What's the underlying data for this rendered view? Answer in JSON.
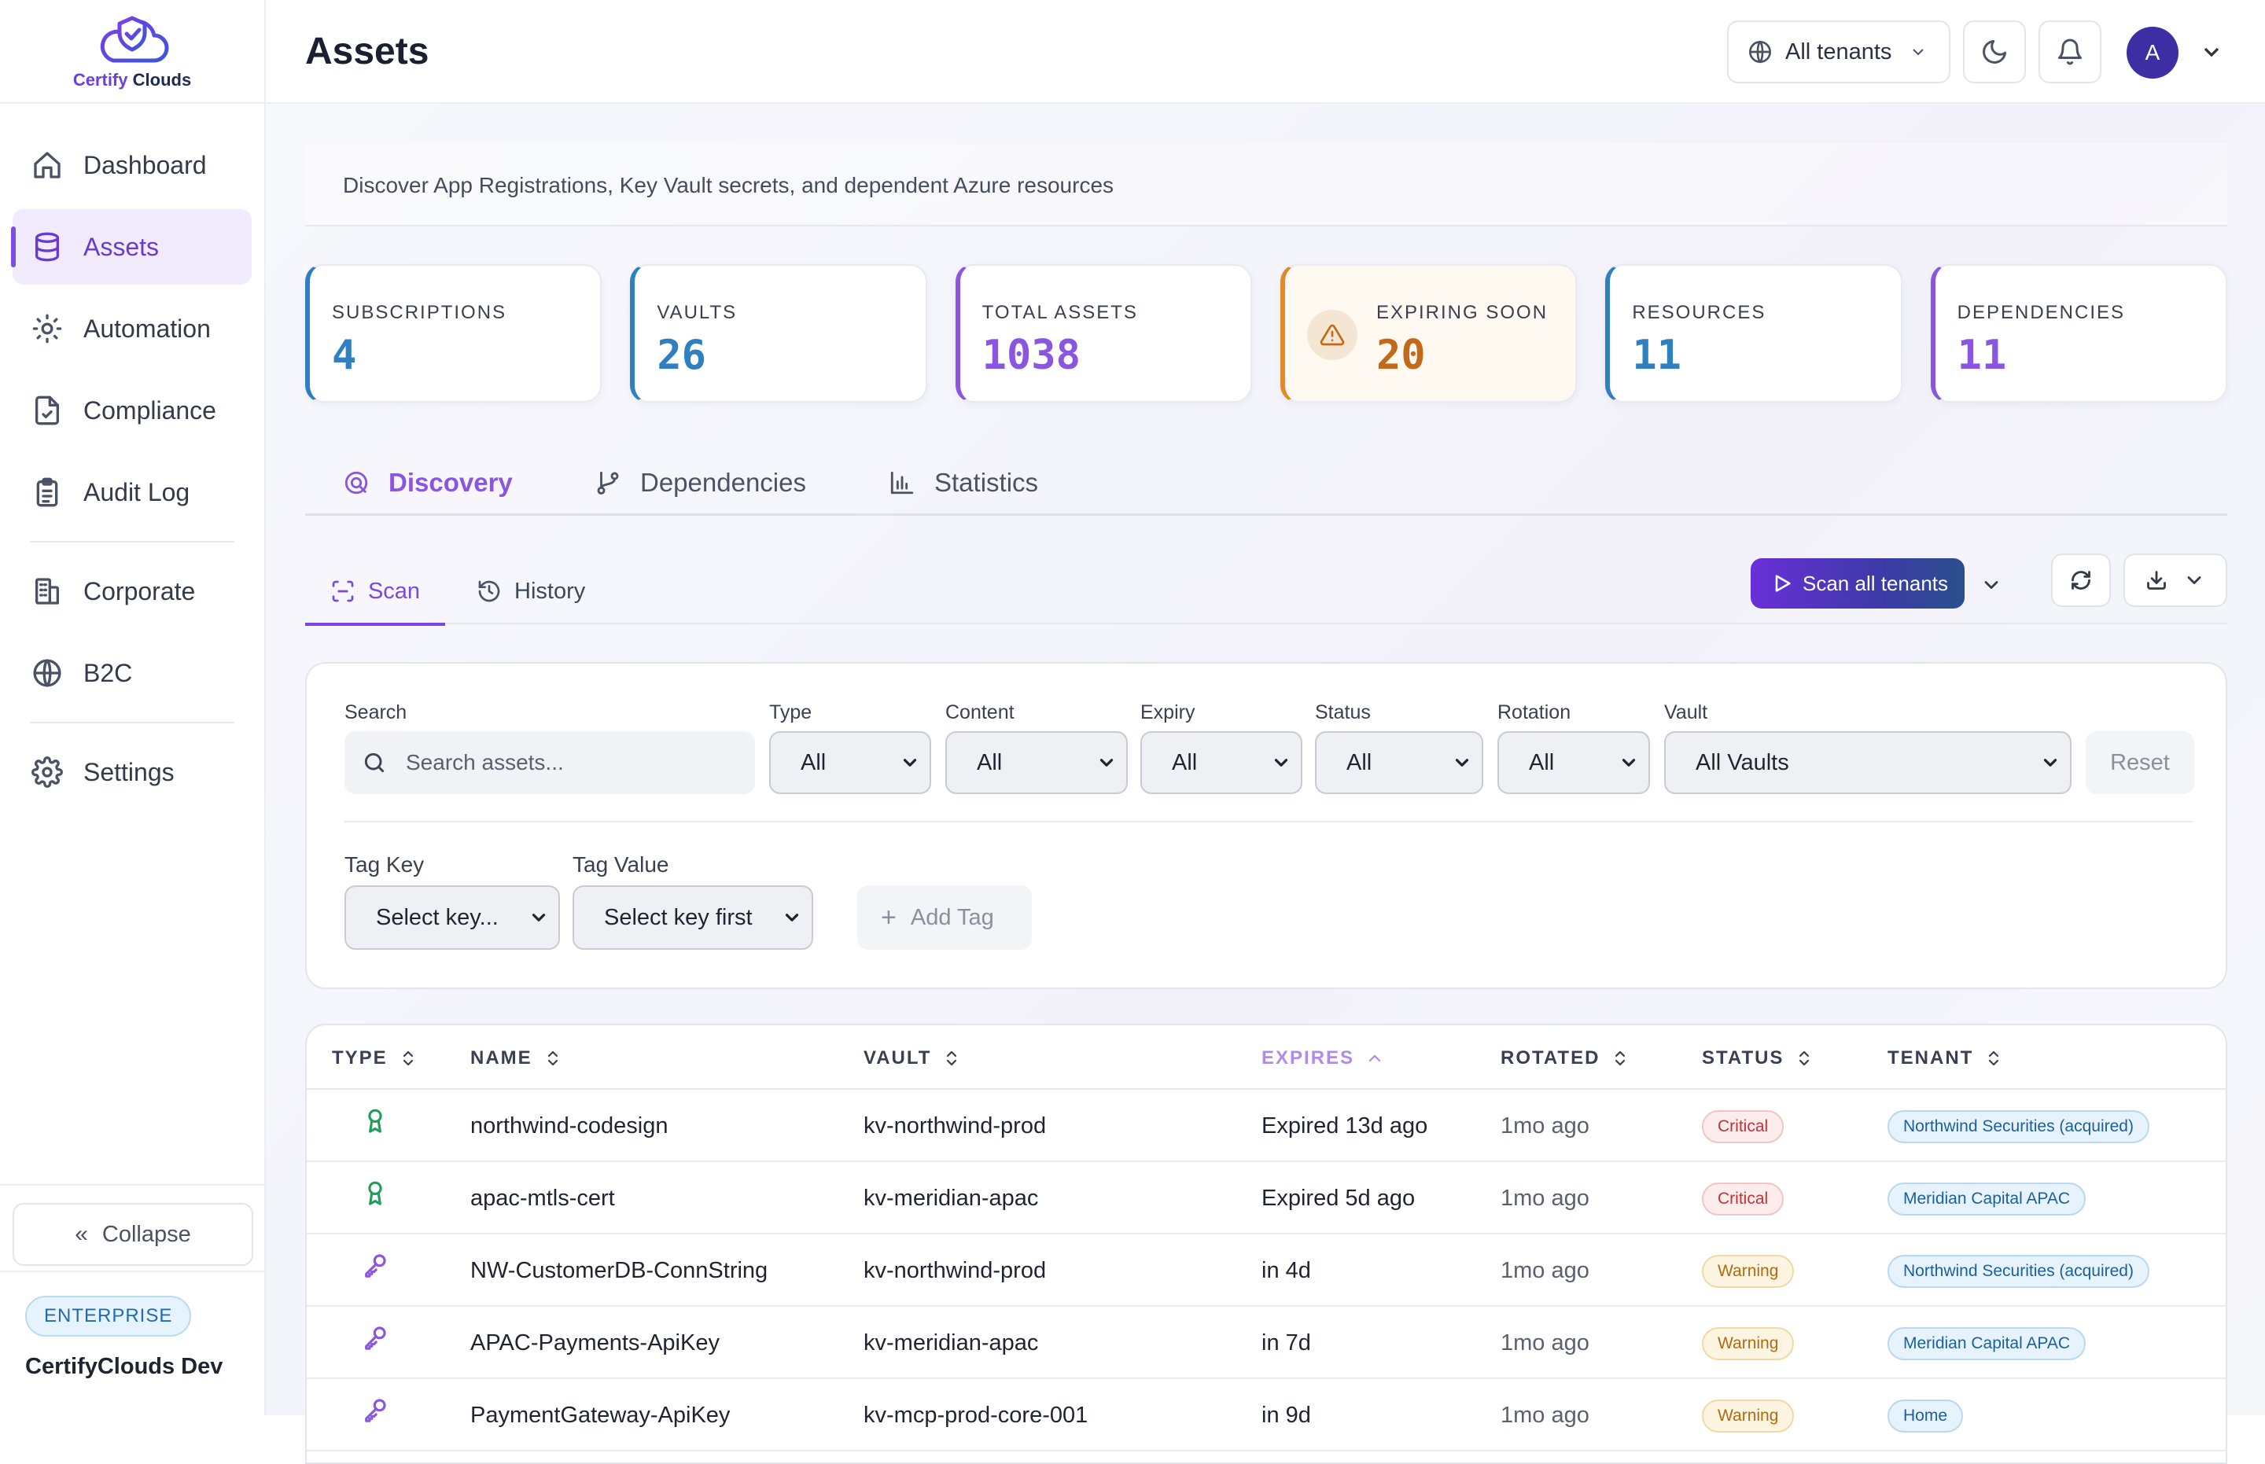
{
  "app": {
    "logo_word1": "Certify",
    "logo_word2": "Clouds",
    "brand_color": "#6d3fe0"
  },
  "sidebar": {
    "items": [
      {
        "label": "Dashboard",
        "icon": "home-icon"
      },
      {
        "label": "Assets",
        "icon": "database-icon",
        "active": true
      },
      {
        "label": "Automation",
        "icon": "sun-icon"
      },
      {
        "label": "Compliance",
        "icon": "file-check-icon"
      },
      {
        "label": "Audit Log",
        "icon": "clipboard-icon"
      },
      {
        "label": "Corporate",
        "icon": "building-icon"
      },
      {
        "label": "B2C",
        "icon": "globe-icon"
      },
      {
        "label": "Settings",
        "icon": "gear-icon"
      }
    ],
    "collapse_label": "Collapse",
    "plan_badge": "ENTERPRISE",
    "org_name": "CertifyClouds Dev"
  },
  "header": {
    "title": "Assets",
    "tenant_selector": "All tenants",
    "avatar_initial": "A"
  },
  "main": {
    "subtitle": "Discover App Registrations, Key Vault secrets, and dependent Azure resources",
    "stats": [
      {
        "label": "SUBSCRIPTIONS",
        "value": "4",
        "color": "#2f7fc1"
      },
      {
        "label": "VAULTS",
        "value": "26",
        "color": "#2f7fc1"
      },
      {
        "label": "TOTAL ASSETS",
        "value": "1038",
        "color": "#8a55e0"
      },
      {
        "label": "EXPIRING SOON",
        "value": "20",
        "color": "#c26a1a"
      },
      {
        "label": "RESOURCES",
        "value": "11",
        "color": "#2f7fc1"
      },
      {
        "label": "DEPENDENCIES",
        "value": "11",
        "color": "#8a55e0"
      }
    ],
    "tabs": [
      "Discovery",
      "Dependencies",
      "Statistics"
    ],
    "subtabs": [
      "Scan",
      "History"
    ],
    "scan_button": "Scan all tenants"
  },
  "filters": {
    "search_label": "Search",
    "search_placeholder": "Search assets...",
    "type_label": "Type",
    "type_value": "All",
    "content_label": "Content",
    "content_value": "All",
    "expiry_label": "Expiry",
    "expiry_value": "All",
    "status_label": "Status",
    "status_value": "All",
    "rotation_label": "Rotation",
    "rotation_value": "All",
    "vault_label": "Vault",
    "vault_value": "All Vaults",
    "reset_label": "Reset",
    "tag_key_label": "Tag Key",
    "tag_key_value": "Select key...",
    "tag_value_label": "Tag Value",
    "tag_value_value": "Select key first",
    "add_tag_label": "Add Tag"
  },
  "table": {
    "headers": [
      "TYPE",
      "NAME",
      "VAULT",
      "EXPIRES",
      "ROTATED",
      "STATUS",
      "TENANT"
    ],
    "rows": [
      {
        "type": "certificate",
        "name": "northwind-codesign",
        "vault": "kv-northwind-prod",
        "expires": "Expired 13d ago",
        "rotated": "1mo ago",
        "status": "Critical",
        "tenant": "Northwind Securities (acquired)"
      },
      {
        "type": "certificate",
        "name": "apac-mtls-cert",
        "vault": "kv-meridian-apac",
        "expires": "Expired 5d ago",
        "rotated": "1mo ago",
        "status": "Critical",
        "tenant": "Meridian Capital APAC"
      },
      {
        "type": "secret",
        "name": "NW-CustomerDB-ConnString",
        "vault": "kv-northwind-prod",
        "expires": "in 4d",
        "rotated": "1mo ago",
        "status": "Warning",
        "tenant": "Northwind Securities (acquired)"
      },
      {
        "type": "secret",
        "name": "APAC-Payments-ApiKey",
        "vault": "kv-meridian-apac",
        "expires": "in 7d",
        "rotated": "1mo ago",
        "status": "Warning",
        "tenant": "Meridian Capital APAC"
      },
      {
        "type": "secret",
        "name": "PaymentGateway-ApiKey",
        "vault": "kv-mcp-prod-core-001",
        "expires": "in 9d",
        "rotated": "1mo ago",
        "status": "Warning",
        "tenant": "Home"
      }
    ]
  }
}
